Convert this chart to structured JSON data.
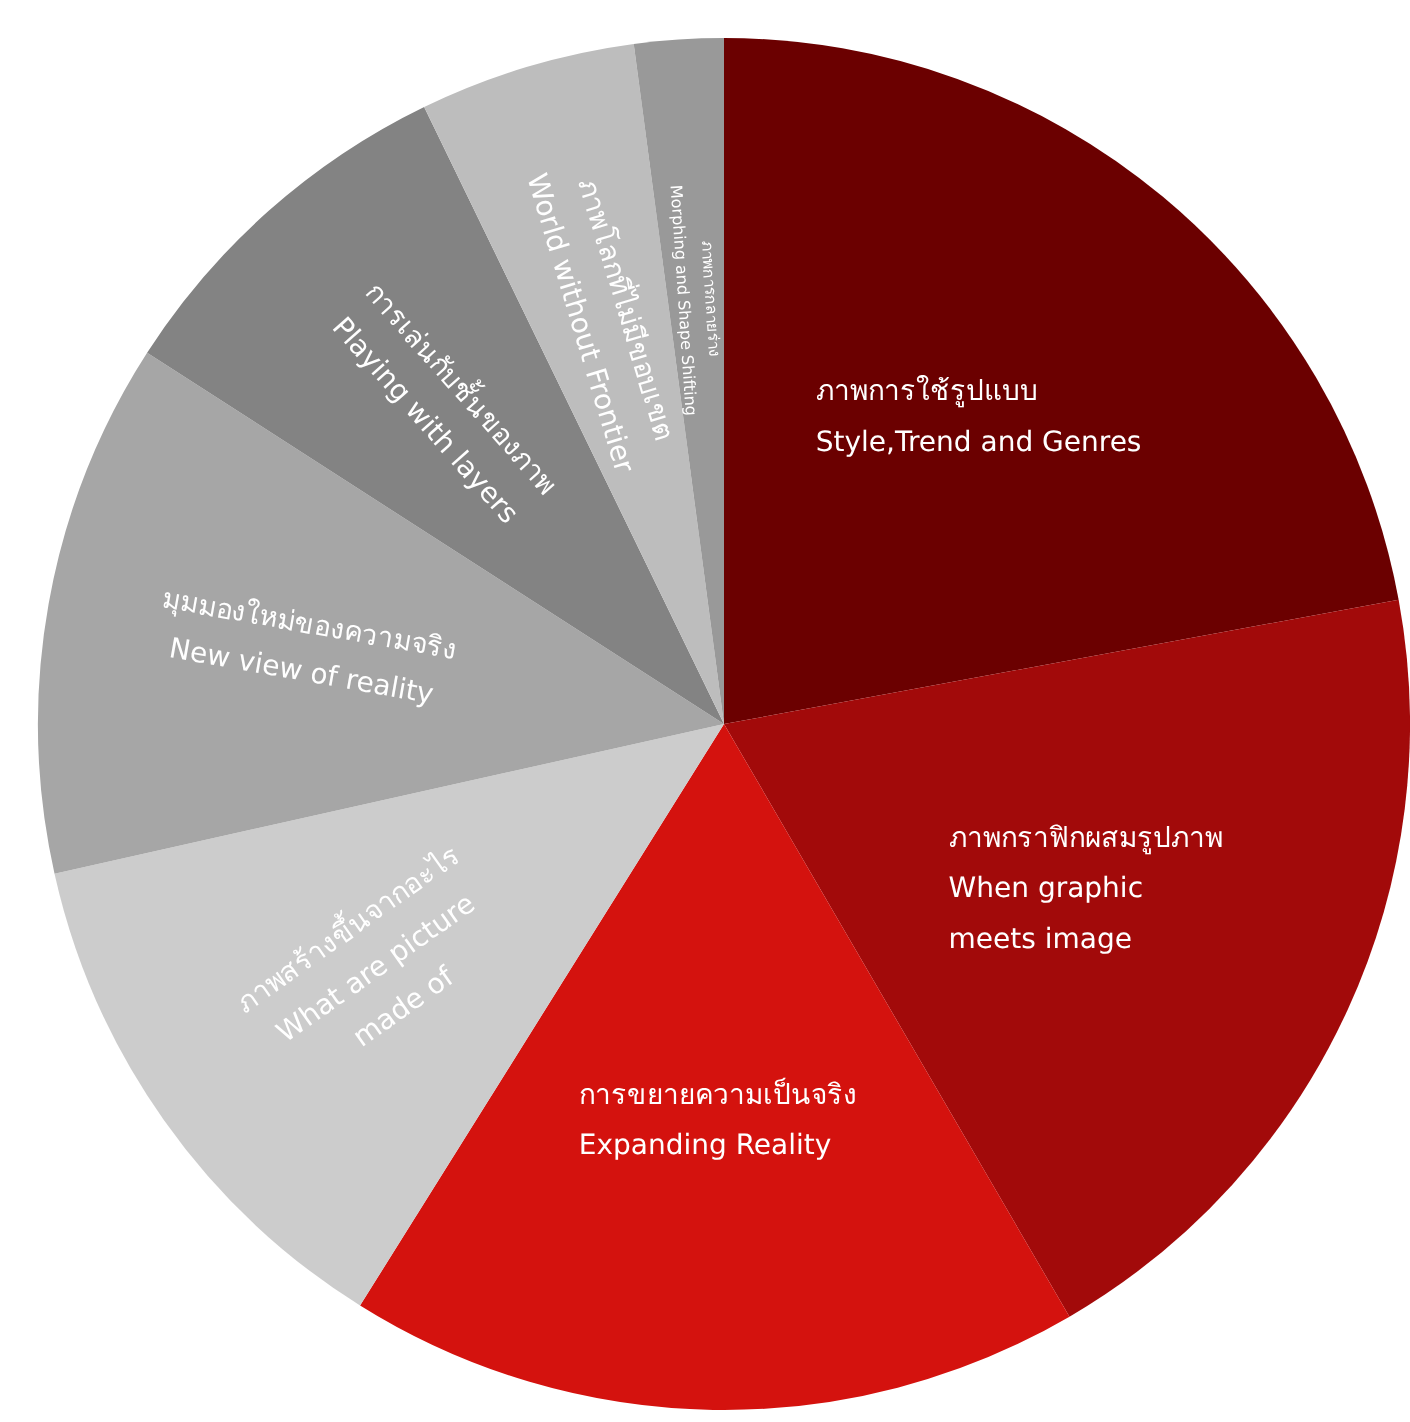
{
  "chart_data": {
    "type": "pie",
    "categories": [
      "ภาพการใช้รูปแบบ\nStyle,Trend and Genres",
      "ภาพกราฟิกผสมรูปภาพ\nWhen graphic\nmeets image",
      "การขยายความเป็นจริง\nExpanding Reality",
      "ภาพสร้างขึ้นจากอะไร\nWhat are picture\nmade of",
      "มุมมองใหม่ของความจริง\nNew view of reality",
      "การเล่นกับชั้นของภาพ\nPlaying with layers",
      "ภาพโลกที่ไม่มีขอบเขต\nWorld without Frontier",
      "ภาพการกลายร่าง\nMorphing and Shape Shifting"
    ],
    "values": [
      22.1,
      19.5,
      17.3,
      12.6,
      12.6,
      8.7,
      5.1,
      2.1
    ],
    "colors": [
      "#6b0000",
      "#a20a0a",
      "#d4120e",
      "#cccccc",
      "#a6a6a6",
      "#838383",
      "#bdbdbd",
      "#999999"
    ],
    "legend": false
  }
}
